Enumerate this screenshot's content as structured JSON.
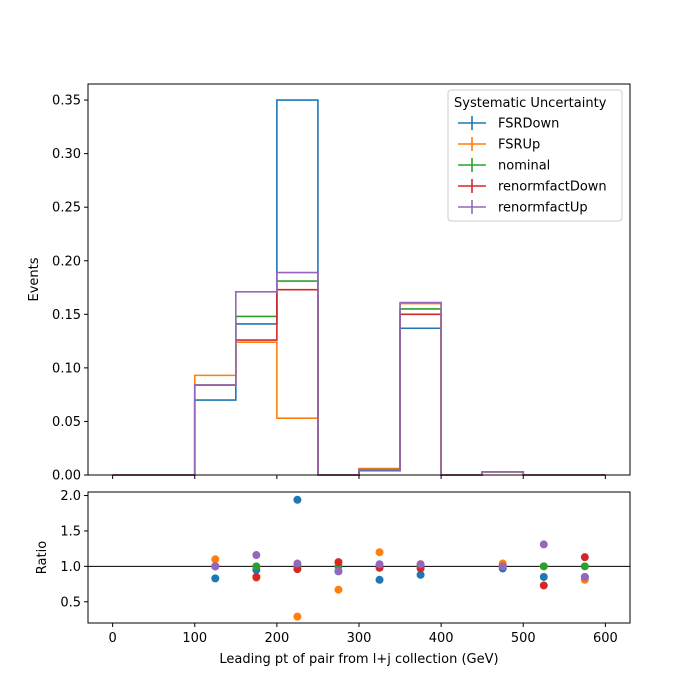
{
  "chart_data": [
    {
      "type": "histogram-step",
      "panel": "main",
      "xlabel": "",
      "ylabel": "Events",
      "xlim": [
        -30,
        630
      ],
      "ylim": [
        0,
        0.365
      ],
      "yticks": [
        0.0,
        0.05,
        0.1,
        0.15,
        0.2,
        0.25,
        0.3,
        0.35
      ],
      "ytick_labels": [
        "0.00",
        "0.05",
        "0.10",
        "0.15",
        "0.20",
        "0.25",
        "0.30",
        "0.35"
      ],
      "xticks": [
        0,
        100,
        200,
        300,
        400,
        500,
        600
      ],
      "bin_edges": [
        0,
        50,
        100,
        150,
        200,
        250,
        300,
        350,
        400,
        450,
        500,
        550,
        600
      ],
      "legend": {
        "title": "Systematic Uncertainty",
        "placement": "upper right"
      },
      "series": [
        {
          "name": "FSRDown",
          "color": "#1f77b4",
          "values": [
            0,
            0,
            0.07,
            0.141,
            0.35,
            0,
            0.004,
            0.137,
            0,
            0.003,
            0,
            0
          ]
        },
        {
          "name": "FSRUp",
          "color": "#ff7f0e",
          "values": [
            0,
            0,
            0.093,
            0.124,
            0.053,
            0,
            0.006,
            0.16,
            0,
            0.003,
            0,
            0
          ]
        },
        {
          "name": "nominal",
          "color": "#2ca02c",
          "values": [
            0,
            0,
            0.084,
            0.148,
            0.181,
            0,
            0.005,
            0.155,
            0,
            0.003,
            0,
            0
          ]
        },
        {
          "name": "renormfactDown",
          "color": "#d62728",
          "values": [
            0,
            0,
            0.084,
            0.126,
            0.173,
            0,
            0.005,
            0.15,
            0,
            0.003,
            0,
            0
          ]
        },
        {
          "name": "renormfactUp",
          "color": "#9467bd",
          "values": [
            0,
            0,
            0.084,
            0.171,
            0.189,
            0,
            0.005,
            0.161,
            0,
            0.003,
            0,
            0
          ]
        }
      ]
    },
    {
      "type": "scatter",
      "panel": "ratio",
      "xlabel": "Leading pt of pair from l+j collection (GeV)",
      "ylabel": "Ratio",
      "xlim": [
        -30,
        630
      ],
      "ylim": [
        0.2,
        2.05
      ],
      "yticks": [
        0.5,
        1.0,
        1.5,
        2.0
      ],
      "ytick_labels": [
        "0.5",
        "1.0",
        "1.5",
        "2.0"
      ],
      "xticks": [
        0,
        100,
        200,
        300,
        400,
        500,
        600
      ],
      "xtick_labels": [
        "0",
        "100",
        "200",
        "300",
        "400",
        "500",
        "600"
      ],
      "reference_line": 1.0,
      "x": [
        125,
        175,
        225,
        275,
        325,
        375,
        475,
        525,
        575
      ],
      "series": [
        {
          "name": "FSRDown",
          "color": "#1f77b4",
          "values": [
            0.83,
            0.95,
            1.94,
            0.93,
            0.81,
            0.88,
            0.97,
            0.85,
            0.85
          ]
        },
        {
          "name": "FSRUp",
          "color": "#ff7f0e",
          "values": [
            1.1,
            0.84,
            0.29,
            0.67,
            1.2,
            1.03,
            1.04,
            1.0,
            0.81
          ]
        },
        {
          "name": "nominal",
          "color": "#2ca02c",
          "values": [
            1.0,
            1.0,
            1.0,
            1.0,
            1.0,
            1.0,
            1.0,
            1.0,
            1.0
          ]
        },
        {
          "name": "renormfactDown",
          "color": "#d62728",
          "values": [
            1.0,
            0.85,
            0.96,
            1.06,
            0.98,
            0.97,
            1.0,
            0.73,
            1.13
          ]
        },
        {
          "name": "renormfactUp",
          "color": "#9467bd",
          "values": [
            1.0,
            1.16,
            1.04,
            0.93,
            1.03,
            1.03,
            1.0,
            1.31,
            0.85
          ]
        }
      ]
    }
  ]
}
